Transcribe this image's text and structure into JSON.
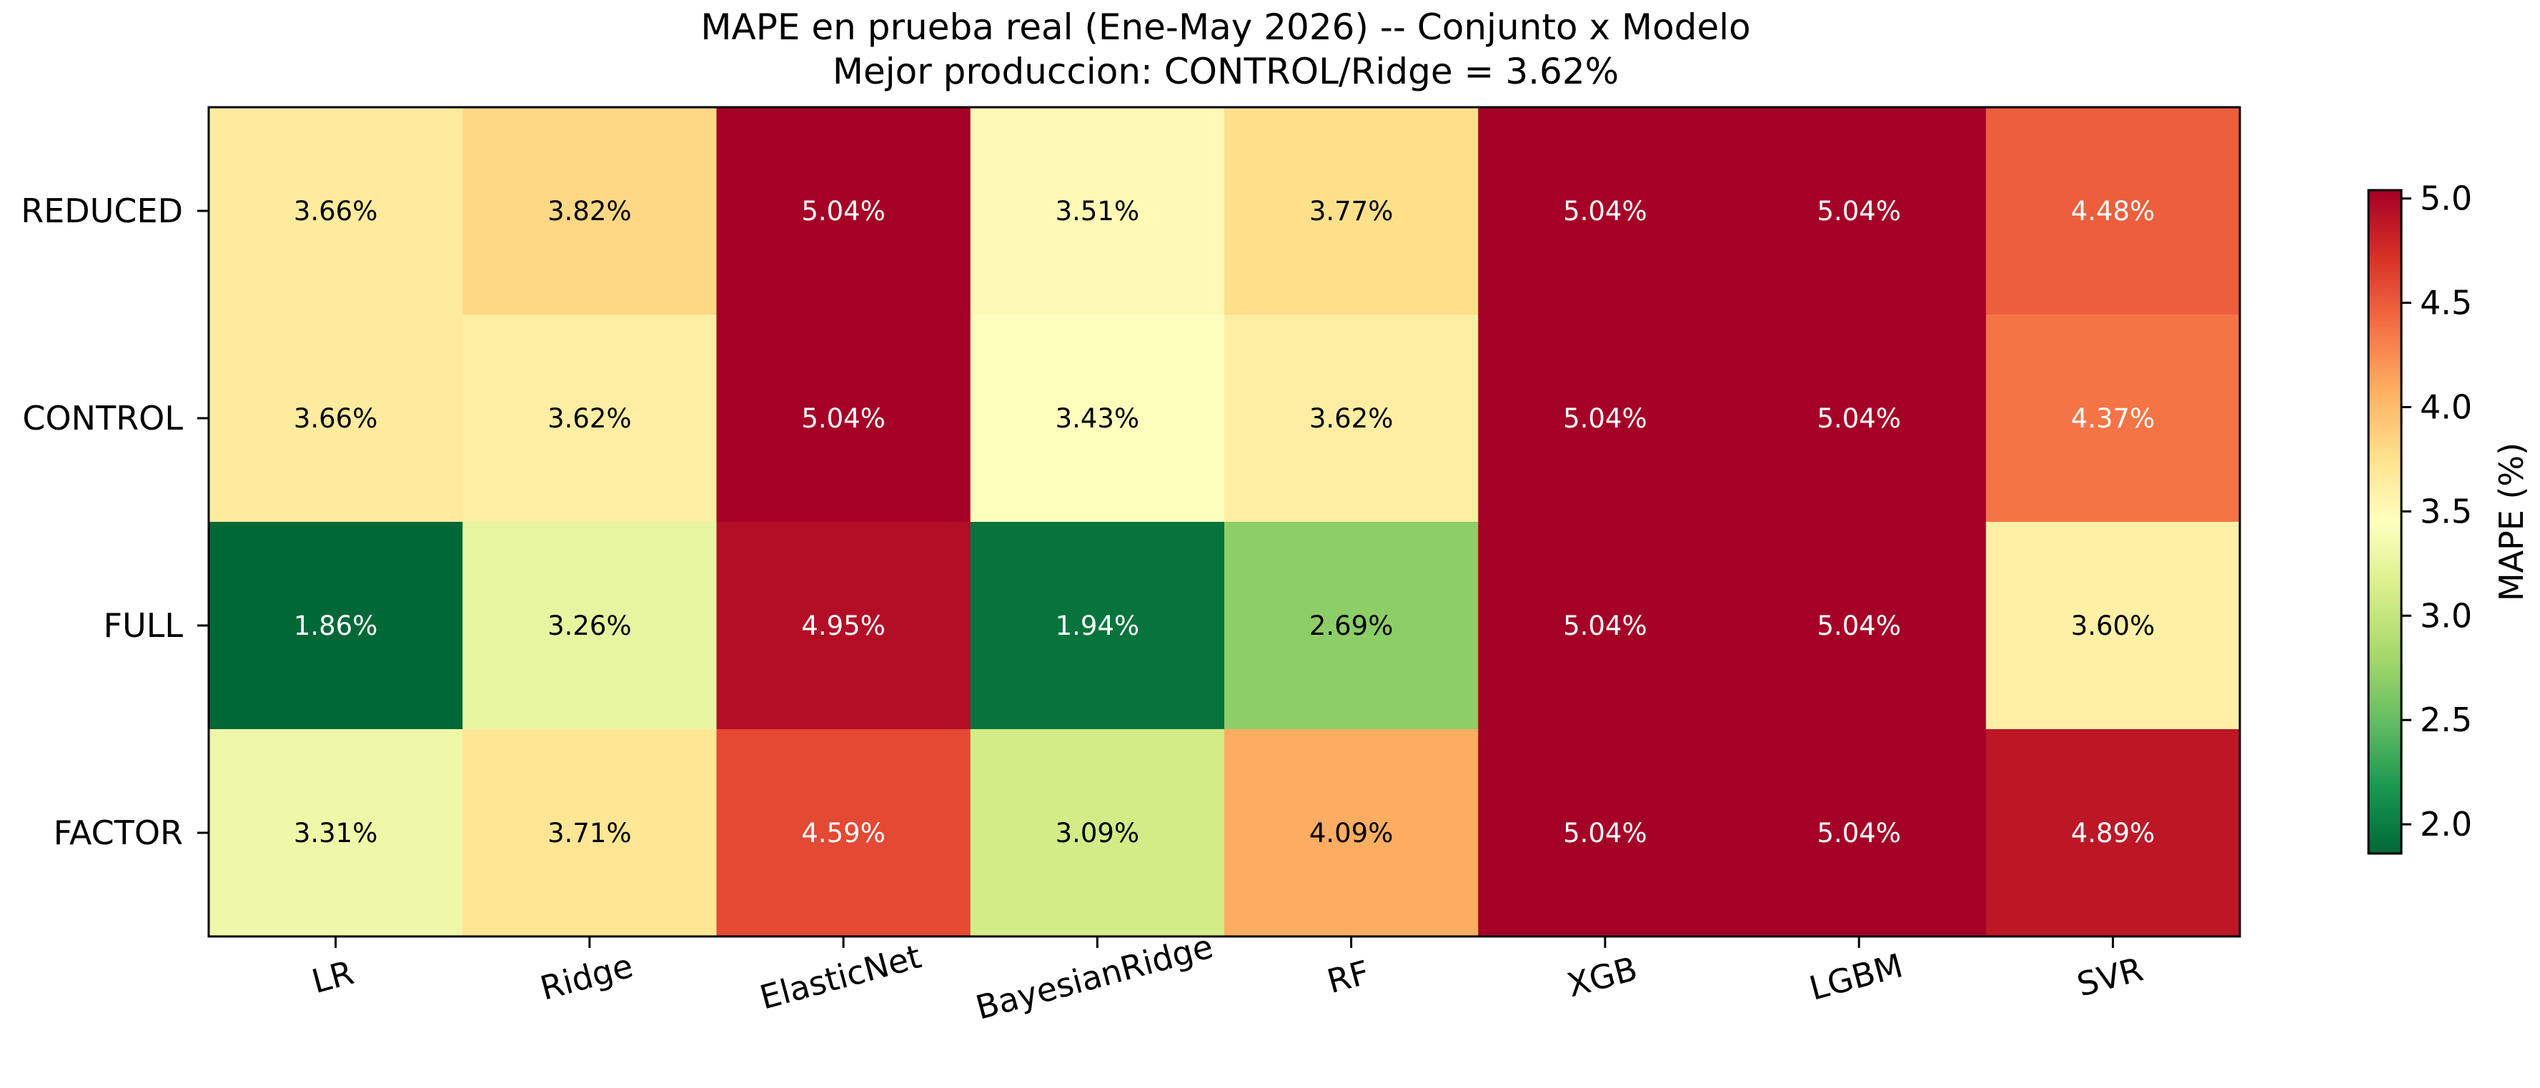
{
  "chart_data": {
    "type": "heatmap",
    "title": "MAPE en prueba real (Ene-May 2026) -- Conjunto x Modelo",
    "subtitle": "Mejor produccion: CONTROL/Ridge = 3.62%",
    "rows": [
      "REDUCED",
      "CONTROL",
      "FULL",
      "FACTOR"
    ],
    "columns": [
      "LR",
      "Ridge",
      "ElasticNet",
      "BayesianRidge",
      "RF",
      "XGB",
      "LGBM",
      "SVR"
    ],
    "values": [
      [
        3.66,
        3.82,
        5.04,
        3.51,
        3.77,
        5.04,
        5.04,
        4.48
      ],
      [
        3.66,
        3.62,
        5.04,
        3.43,
        3.62,
        5.04,
        5.04,
        4.37
      ],
      [
        1.86,
        3.26,
        4.95,
        1.94,
        2.69,
        5.04,
        5.04,
        3.6
      ],
      [
        3.31,
        3.71,
        4.59,
        3.09,
        4.09,
        5.04,
        5.04,
        4.89
      ]
    ],
    "cell_labels": [
      [
        "3.66%",
        "3.82%",
        "5.04%",
        "3.51%",
        "3.77%",
        "5.04%",
        "5.04%",
        "4.48%"
      ],
      [
        "3.66%",
        "3.62%",
        "5.04%",
        "3.43%",
        "3.62%",
        "5.04%",
        "5.04%",
        "4.37%"
      ],
      [
        "1.86%",
        "3.26%",
        "4.95%",
        "1.94%",
        "2.69%",
        "5.04%",
        "5.04%",
        "3.60%"
      ],
      [
        "3.31%",
        "3.71%",
        "4.59%",
        "3.09%",
        "4.09%",
        "5.04%",
        "5.04%",
        "4.89%"
      ]
    ],
    "colormap": "RdYlGn_r",
    "vmin": 1.86,
    "vmax": 5.04,
    "colorbar": {
      "label": "MAPE (%)",
      "ticks": [
        2.0,
        2.5,
        3.0,
        3.5,
        4.0,
        4.5,
        5.0
      ],
      "tick_labels": [
        "2.0",
        "2.5",
        "3.0",
        "3.5",
        "4.0",
        "4.5",
        "5.0"
      ]
    },
    "colors": {
      "low": "#006837",
      "mid": "#ffffbf",
      "high": "#a50026"
    }
  }
}
